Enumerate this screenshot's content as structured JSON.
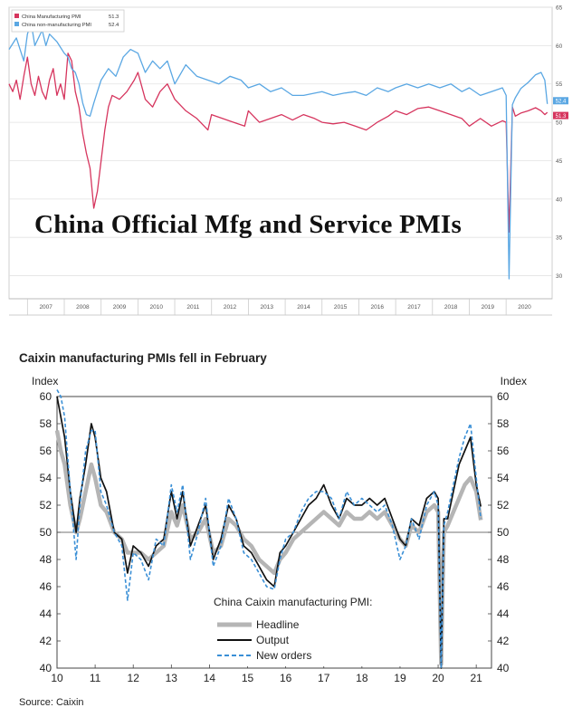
{
  "chart_data": [
    {
      "type": "line",
      "title": "China Official Mfg and Service PMIs",
      "x_ticks": [
        "2007",
        "2008",
        "2009",
        "2010",
        "2011",
        "2012",
        "2013",
        "2014",
        "2015",
        "2016",
        "2017",
        "2018",
        "2019",
        "2020"
      ],
      "y_ticks": [
        30,
        35,
        40,
        45,
        50,
        55,
        60,
        65
      ],
      "ylim": [
        27,
        65
      ],
      "xlim": [
        2006.5,
        2021.25
      ],
      "grid": true,
      "legend_placement": "top-left",
      "series": [
        {
          "name": "China Manufacturing PMI",
          "legend_value": "51.3",
          "color": "#d6355e",
          "last_value": "51.3",
          "x": [
            2006.5,
            2006.6,
            2006.7,
            2006.8,
            2006.9,
            2007.0,
            2007.1,
            2007.2,
            2007.3,
            2007.4,
            2007.5,
            2007.6,
            2007.7,
            2007.8,
            2007.9,
            2008.0,
            2008.1,
            2008.2,
            2008.3,
            2008.4,
            2008.5,
            2008.6,
            2008.7,
            2008.8,
            2008.9,
            2009.0,
            2009.1,
            2009.2,
            2009.3,
            2009.5,
            2009.7,
            2009.9,
            2010.0,
            2010.2,
            2010.4,
            2010.6,
            2010.8,
            2011.0,
            2011.3,
            2011.6,
            2011.9,
            2012.0,
            2012.3,
            2012.6,
            2012.9,
            2013.0,
            2013.3,
            2013.6,
            2013.9,
            2014.2,
            2014.5,
            2014.8,
            2015.0,
            2015.3,
            2015.6,
            2015.9,
            2016.2,
            2016.5,
            2016.8,
            2017.0,
            2017.3,
            2017.6,
            2017.9,
            2018.2,
            2018.5,
            2018.8,
            2019.0,
            2019.3,
            2019.6,
            2019.9,
            2020.0,
            2020.08,
            2020.17,
            2020.25,
            2020.4,
            2020.6,
            2020.8,
            2020.95,
            2021.05,
            2021.12
          ],
          "y": [
            55.0,
            54.0,
            55.5,
            53.0,
            56.0,
            58.5,
            55.0,
            53.5,
            56.0,
            54.0,
            53.0,
            55.5,
            57.0,
            53.5,
            55.0,
            53.0,
            59.0,
            58.0,
            54.0,
            52.0,
            48.5,
            46.0,
            44.0,
            38.8,
            41.0,
            45.0,
            49.0,
            52.0,
            53.5,
            53.0,
            54.0,
            55.5,
            56.5,
            53.0,
            52.0,
            54.0,
            55.0,
            53.0,
            51.5,
            50.5,
            49.0,
            51.0,
            50.5,
            50.0,
            49.5,
            51.5,
            50.0,
            50.5,
            51.0,
            50.3,
            51.0,
            50.5,
            50.0,
            49.8,
            50.0,
            49.5,
            49.0,
            50.0,
            50.8,
            51.5,
            51.0,
            51.8,
            52.0,
            51.5,
            51.0,
            50.5,
            49.5,
            50.5,
            49.5,
            50.2,
            50.0,
            35.7,
            52.0,
            50.8,
            51.2,
            51.5,
            51.9,
            51.5,
            51.0,
            51.3
          ]
        },
        {
          "name": "China non-manufacturing PMI",
          "legend_value": "52.4",
          "color": "#5aa7e3",
          "last_value": "52.4",
          "x": [
            2006.5,
            2006.7,
            2006.9,
            2007.0,
            2007.1,
            2007.2,
            2007.3,
            2007.4,
            2007.5,
            2007.6,
            2007.8,
            2008.0,
            2008.1,
            2008.2,
            2008.3,
            2008.4,
            2008.5,
            2008.6,
            2008.7,
            2008.8,
            2008.9,
            2009.0,
            2009.2,
            2009.4,
            2009.6,
            2009.8,
            2010.0,
            2010.2,
            2010.4,
            2010.6,
            2010.8,
            2011.0,
            2011.3,
            2011.6,
            2011.9,
            2012.2,
            2012.5,
            2012.8,
            2013.0,
            2013.3,
            2013.6,
            2013.9,
            2014.2,
            2014.5,
            2014.8,
            2015.0,
            2015.3,
            2015.6,
            2015.9,
            2016.2,
            2016.5,
            2016.8,
            2017.0,
            2017.3,
            2017.6,
            2017.9,
            2018.2,
            2018.5,
            2018.8,
            2019.0,
            2019.3,
            2019.6,
            2019.9,
            2020.0,
            2020.08,
            2020.17,
            2020.25,
            2020.4,
            2020.6,
            2020.8,
            2020.95,
            2021.05,
            2021.12
          ],
          "y": [
            59.5,
            61.0,
            58.0,
            61.5,
            63.0,
            60.0,
            61.0,
            62.0,
            60.0,
            61.5,
            60.5,
            59.0,
            58.5,
            57.0,
            56.5,
            55.0,
            52.5,
            51.0,
            50.8,
            52.5,
            54.0,
            55.5,
            57.0,
            56.0,
            58.5,
            59.5,
            59.0,
            56.5,
            58.0,
            57.0,
            58.0,
            55.0,
            57.5,
            56.0,
            55.5,
            55.0,
            56.0,
            55.5,
            54.5,
            55.0,
            54.0,
            54.5,
            53.5,
            53.5,
            53.8,
            54.0,
            53.5,
            53.8,
            54.0,
            53.5,
            54.5,
            54.0,
            54.5,
            55.0,
            54.5,
            55.0,
            54.5,
            55.0,
            54.0,
            54.5,
            53.5,
            54.0,
            54.5,
            53.5,
            29.6,
            52.3,
            53.2,
            54.4,
            55.2,
            56.2,
            56.5,
            55.5,
            52.4
          ]
        }
      ]
    },
    {
      "type": "line",
      "title": "Caixin manufacturing PMIs fell in February",
      "ylabel_left": "Index",
      "ylabel_right": "Index",
      "ylim": [
        40,
        60
      ],
      "y_ticks": [
        40,
        42,
        44,
        46,
        48,
        50,
        52,
        54,
        56,
        58,
        60
      ],
      "xlim": [
        10,
        21.4
      ],
      "x_ticks": [
        "10",
        "11",
        "12",
        "13",
        "14",
        "15",
        "16",
        "17",
        "18",
        "19",
        "20",
        "21"
      ],
      "reference_line": 50,
      "legend_title": "China  Caixin manufacturing  PMI:",
      "legend_placement": "bottom-center",
      "source": "Source: Caixin",
      "series": [
        {
          "name": "Headline",
          "color": "#b5b5b5",
          "style": "solid-thick",
          "x": [
            10.0,
            10.1,
            10.2,
            10.35,
            10.5,
            10.6,
            10.75,
            10.9,
            11.0,
            11.15,
            11.3,
            11.5,
            11.7,
            11.85,
            12.0,
            12.2,
            12.4,
            12.6,
            12.8,
            13.0,
            13.15,
            13.3,
            13.5,
            13.7,
            13.9,
            14.1,
            14.3,
            14.5,
            14.7,
            14.9,
            15.1,
            15.3,
            15.5,
            15.7,
            15.85,
            16.0,
            16.2,
            16.4,
            16.6,
            16.8,
            17.0,
            17.2,
            17.4,
            17.6,
            17.8,
            18.0,
            18.2,
            18.4,
            18.6,
            18.8,
            19.0,
            19.15,
            19.3,
            19.5,
            19.7,
            19.9,
            20.0,
            20.08,
            20.15,
            20.25,
            20.4,
            20.55,
            20.7,
            20.85,
            21.0,
            21.12
          ],
          "y": [
            57.5,
            56.0,
            55.0,
            52.0,
            50.0,
            51.0,
            53.0,
            55.0,
            54.0,
            52.0,
            51.5,
            50.0,
            49.5,
            48.5,
            48.5,
            48.5,
            48.0,
            48.5,
            49.0,
            51.5,
            50.5,
            52.0,
            49.5,
            50.0,
            51.0,
            48.5,
            49.0,
            51.0,
            50.5,
            49.5,
            49.0,
            48.0,
            47.5,
            47.0,
            48.0,
            48.5,
            49.5,
            50.0,
            50.5,
            51.0,
            51.5,
            51.0,
            50.5,
            51.5,
            51.0,
            51.0,
            51.5,
            51.0,
            51.5,
            50.5,
            49.5,
            49.0,
            50.5,
            50.0,
            51.5,
            52.0,
            51.5,
            40.3,
            50.0,
            50.5,
            51.5,
            52.5,
            53.5,
            54.0,
            53.0,
            50.9
          ]
        },
        {
          "name": "Output",
          "color": "#111111",
          "style": "solid",
          "x": [
            10.0,
            10.1,
            10.2,
            10.35,
            10.5,
            10.6,
            10.75,
            10.9,
            11.0,
            11.15,
            11.3,
            11.5,
            11.7,
            11.85,
            12.0,
            12.2,
            12.4,
            12.6,
            12.8,
            13.0,
            13.15,
            13.3,
            13.5,
            13.7,
            13.9,
            14.1,
            14.3,
            14.5,
            14.7,
            14.9,
            15.1,
            15.3,
            15.5,
            15.7,
            15.85,
            16.0,
            16.2,
            16.4,
            16.6,
            16.8,
            17.0,
            17.2,
            17.4,
            17.6,
            17.8,
            18.0,
            18.2,
            18.4,
            18.6,
            18.8,
            19.0,
            19.15,
            19.3,
            19.5,
            19.7,
            19.9,
            20.0,
            20.08,
            20.15,
            20.25,
            20.4,
            20.55,
            20.7,
            20.85,
            21.0,
            21.12
          ],
          "y": [
            60.0,
            58.5,
            57.0,
            53.0,
            50.0,
            52.5,
            55.0,
            58.0,
            57.0,
            54.0,
            53.0,
            50.0,
            49.5,
            47.0,
            49.0,
            48.5,
            47.5,
            49.0,
            49.5,
            53.0,
            51.0,
            53.0,
            49.0,
            50.5,
            52.0,
            48.0,
            49.5,
            52.0,
            51.0,
            49.0,
            48.5,
            47.5,
            46.5,
            46.0,
            48.5,
            49.0,
            50.0,
            51.0,
            52.0,
            52.5,
            53.5,
            52.0,
            51.0,
            52.5,
            52.0,
            52.0,
            52.5,
            52.0,
            52.5,
            51.0,
            49.5,
            49.0,
            51.0,
            50.5,
            52.5,
            53.0,
            52.5,
            40.0,
            51.0,
            51.0,
            53.0,
            55.0,
            56.0,
            57.0,
            53.5,
            51.9
          ]
        },
        {
          "name": "New orders",
          "color": "#3a8fd6",
          "style": "dashed",
          "x": [
            10.0,
            10.1,
            10.2,
            10.35,
            10.5,
            10.6,
            10.75,
            10.9,
            11.0,
            11.15,
            11.3,
            11.5,
            11.7,
            11.85,
            12.0,
            12.2,
            12.4,
            12.6,
            12.8,
            13.0,
            13.15,
            13.3,
            13.5,
            13.7,
            13.9,
            14.1,
            14.3,
            14.5,
            14.7,
            14.9,
            15.1,
            15.3,
            15.5,
            15.7,
            15.85,
            16.0,
            16.2,
            16.4,
            16.6,
            16.8,
            17.0,
            17.2,
            17.4,
            17.6,
            17.8,
            18.0,
            18.2,
            18.4,
            18.6,
            18.8,
            19.0,
            19.15,
            19.3,
            19.5,
            19.7,
            19.9,
            20.0,
            20.08,
            20.15,
            20.25,
            20.4,
            20.55,
            20.7,
            20.85,
            21.0,
            21.12
          ],
          "y": [
            60.5,
            60.0,
            58.5,
            53.0,
            48.0,
            52.0,
            56.0,
            57.5,
            57.5,
            53.0,
            52.0,
            50.0,
            49.0,
            45.0,
            48.5,
            48.0,
            46.5,
            49.5,
            49.0,
            53.5,
            51.5,
            53.5,
            48.0,
            50.0,
            52.5,
            47.5,
            49.0,
            52.5,
            51.0,
            48.5,
            48.0,
            47.0,
            46.0,
            45.8,
            48.0,
            49.5,
            50.0,
            51.5,
            52.5,
            53.0,
            53.0,
            52.5,
            51.0,
            53.0,
            52.0,
            52.5,
            52.0,
            51.5,
            52.0,
            50.5,
            48.0,
            49.0,
            51.0,
            49.5,
            52.0,
            53.0,
            52.0,
            40.0,
            50.5,
            51.5,
            53.5,
            55.5,
            57.0,
            58.0,
            54.0,
            51.0
          ]
        }
      ]
    }
  ]
}
